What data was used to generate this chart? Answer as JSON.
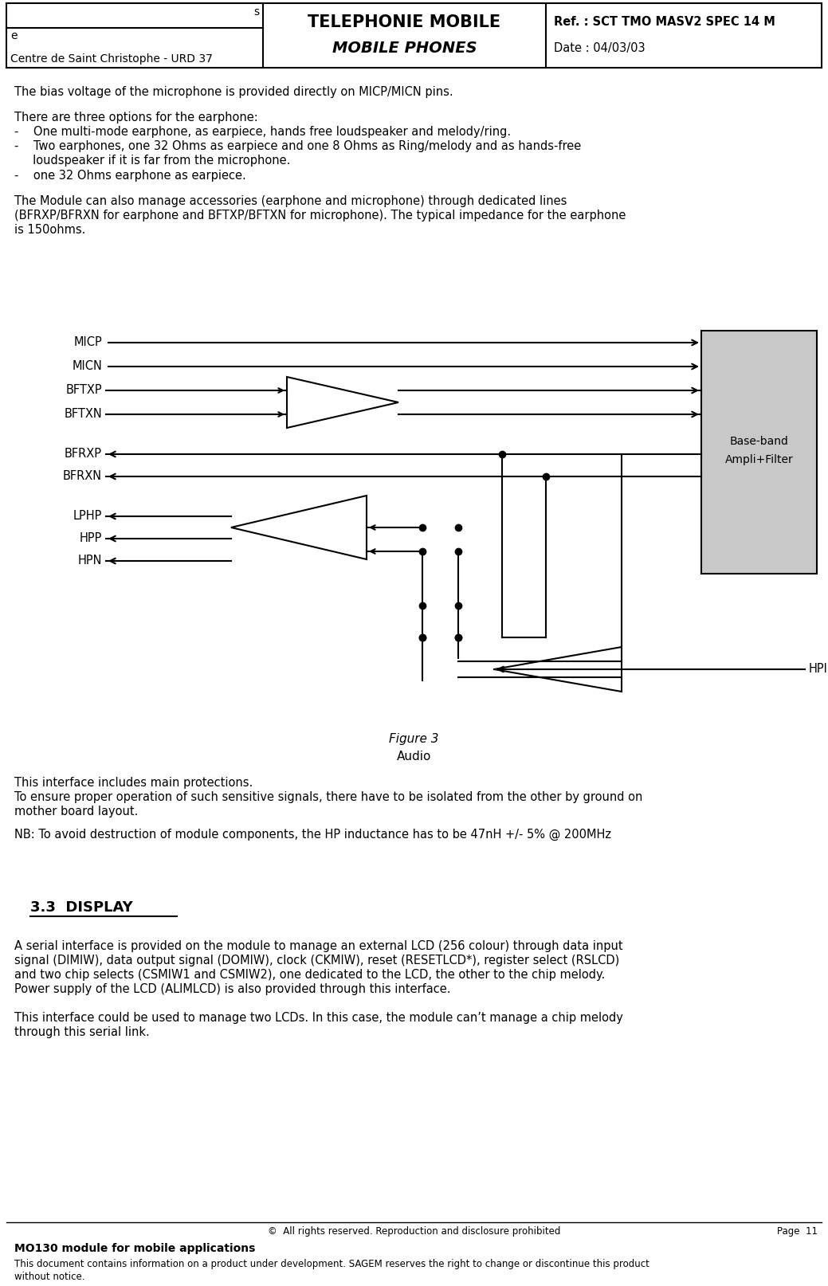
{
  "header": {
    "left_top": "s",
    "left_mid": "e",
    "left_bottom": "Centre de Saint Christophe - URD 37",
    "center_line1": "TELEPHONIE MOBILE",
    "center_line2": "MOBILE PHONES",
    "right_line1": "Ref. : SCT TMO MASV2 SPEC 14 M",
    "right_line2": "Date : 04/03/03"
  },
  "box_gray": "#c8c8c8",
  "bg_color": "#ffffff",
  "fig_width": 10.39,
  "fig_height": 16.14,
  "fig_dpi": 100
}
